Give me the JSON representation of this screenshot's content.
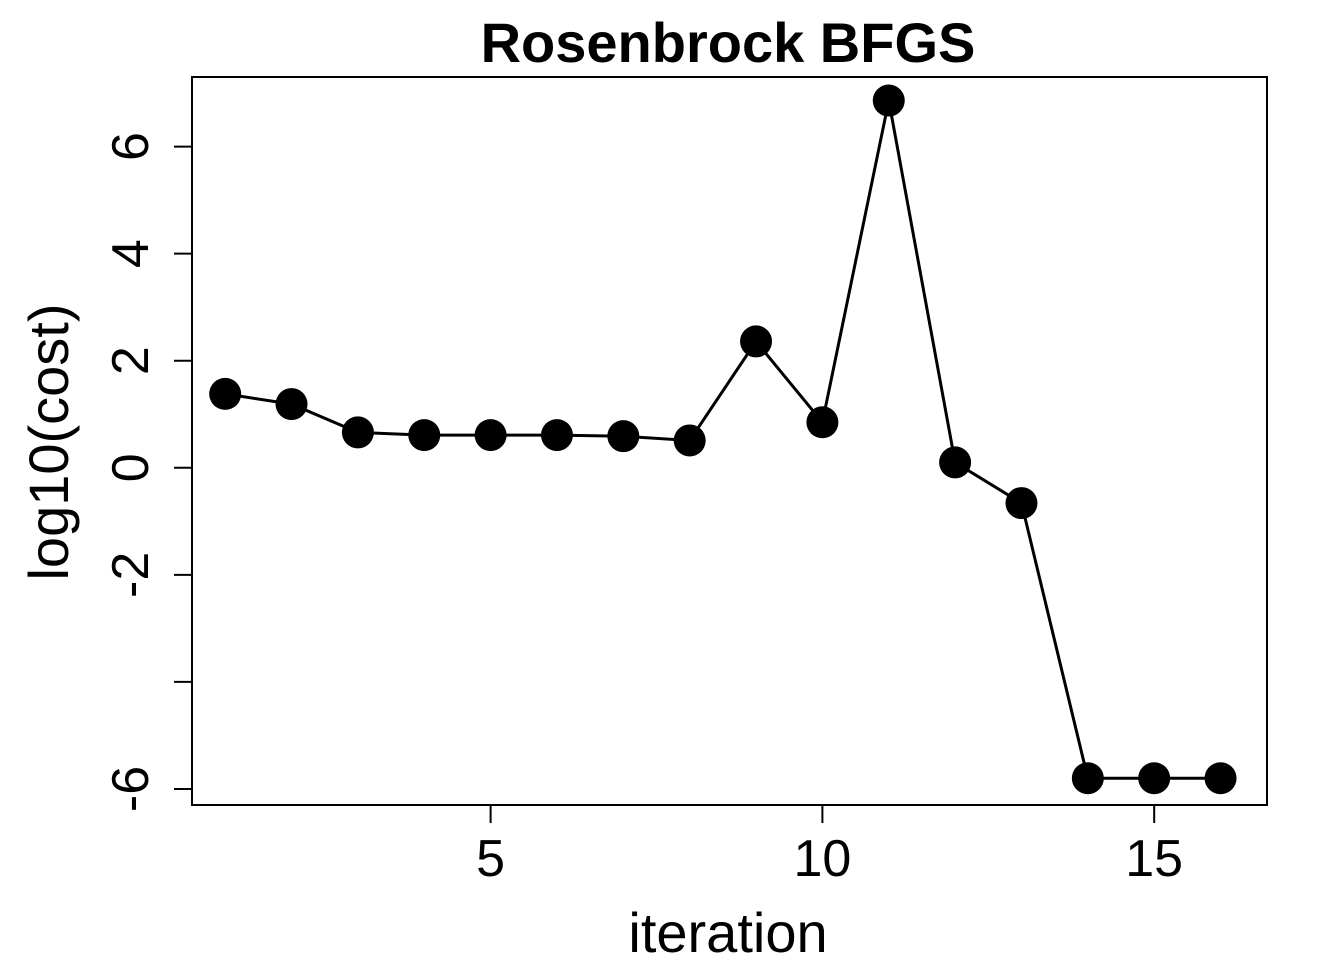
{
  "chart_data": {
    "type": "line",
    "title": "Rosenbrock BFGS",
    "xlabel": "iteration",
    "ylabel": "log10(cost)",
    "xlim": [
      0.5,
      16.7
    ],
    "ylim": [
      -6.3,
      7.3
    ],
    "x_ticks": [
      5,
      10,
      15
    ],
    "x_tick_labels": [
      "5",
      "10",
      "15"
    ],
    "y_ticks": [
      -6,
      -4,
      -2,
      0,
      2,
      4,
      6
    ],
    "y_tick_labels": [
      "-6",
      "",
      "-2",
      "0",
      "2",
      "4",
      "6"
    ],
    "grid": false,
    "series": [
      {
        "color": "#000000",
        "marker": "filled-circle",
        "x": [
          1,
          2,
          3,
          4,
          5,
          6,
          7,
          8,
          9,
          10,
          11,
          12,
          13,
          14,
          15,
          16
        ],
        "y": [
          1.38,
          1.19,
          0.66,
          0.61,
          0.61,
          0.61,
          0.59,
          0.51,
          2.36,
          0.85,
          6.86,
          0.1,
          -0.66,
          -5.8,
          -5.8,
          -5.8
        ]
      }
    ]
  }
}
